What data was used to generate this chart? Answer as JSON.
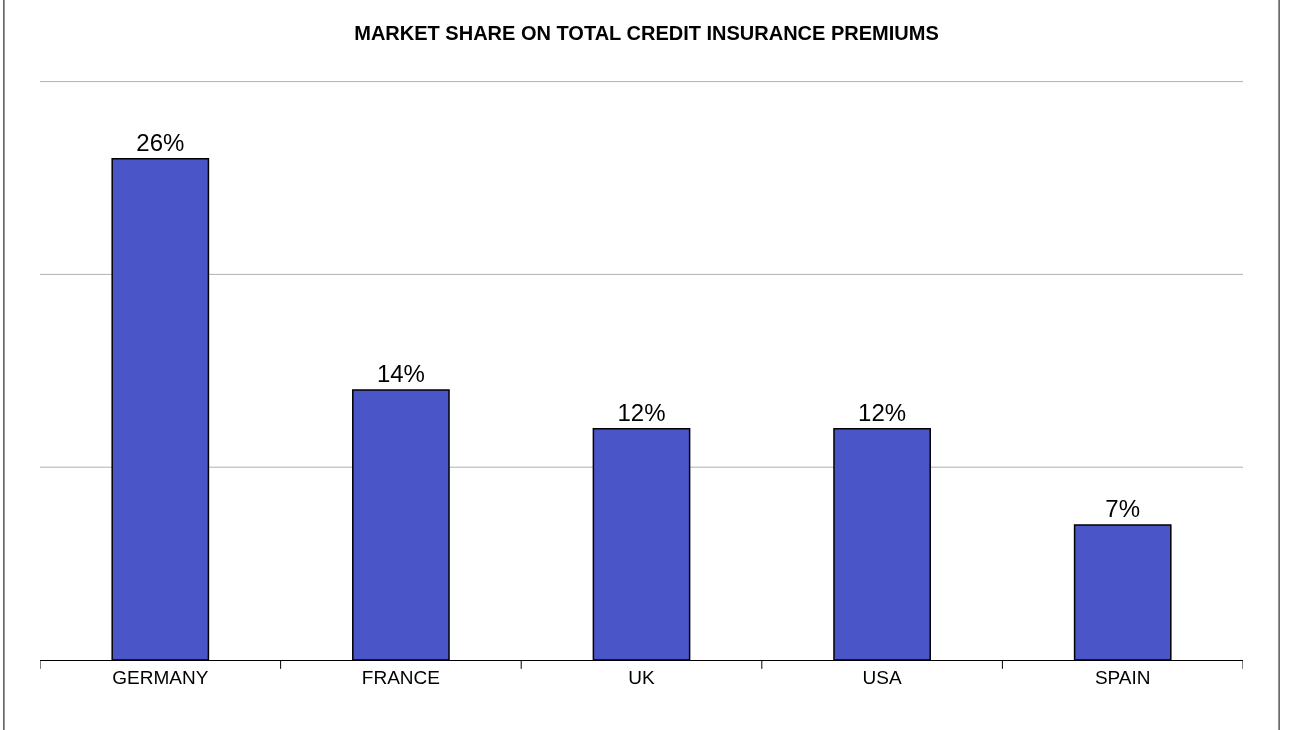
{
  "chart_data": {
    "type": "bar",
    "title": "MARKET SHARE ON TOTAL CREDIT INSURANCE PREMIUMS",
    "categories": [
      "GERMANY",
      "FRANCE",
      "UK",
      "USA",
      "SPAIN"
    ],
    "values": [
      26,
      14,
      12,
      12,
      7
    ],
    "value_labels": [
      "26%",
      "14%",
      "12%",
      "12%",
      "7%"
    ],
    "color": "#4a55c8",
    "ref_lines": [
      {
        "axis": "y",
        "value": 10,
        "color": "#b0b0b0"
      },
      {
        "axis": "y",
        "value": 20,
        "color": "#b0b0b0"
      },
      {
        "axis": "y",
        "value": 30,
        "color": "#b0b0b0"
      }
    ],
    "tick_labels": "x"
  }
}
